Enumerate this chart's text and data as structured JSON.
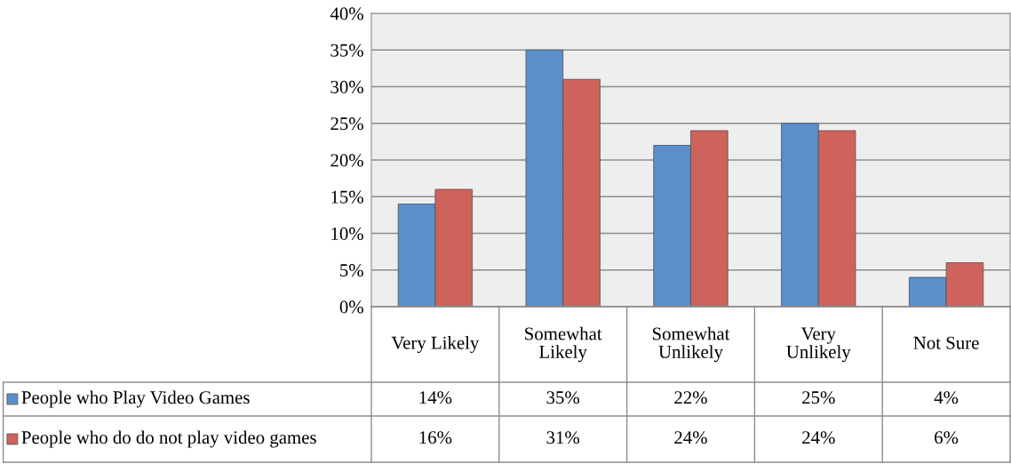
{
  "chart_data": {
    "type": "bar",
    "categories": [
      "Very Likely",
      "Somewhat Likely",
      "Somewhat Unlikely",
      "Very Unlikely",
      "Not Sure"
    ],
    "series": [
      {
        "name": "People who Play Video Games",
        "color": "#5b8fc9",
        "values": [
          14,
          35,
          22,
          25,
          4
        ],
        "value_labels": [
          "14%",
          "35%",
          "22%",
          "25%",
          "4%"
        ]
      },
      {
        "name": "People who do do not play video games",
        "color": "#cd635b",
        "values": [
          16,
          31,
          24,
          24,
          6
        ],
        "value_labels": [
          "16%",
          "31%",
          "24%",
          "24%",
          "6%"
        ]
      }
    ],
    "ylim": [
      0,
      40
    ],
    "yticks": [
      {
        "value": 0,
        "label": "0%"
      },
      {
        "value": 5,
        "label": "5%"
      },
      {
        "value": 10,
        "label": "10%"
      },
      {
        "value": 15,
        "label": "15%"
      },
      {
        "value": 20,
        "label": "20%"
      },
      {
        "value": 25,
        "label": "25%"
      },
      {
        "value": 30,
        "label": "30%"
      },
      {
        "value": 35,
        "label": "35%"
      },
      {
        "value": 40,
        "label": "40%"
      }
    ],
    "grid": "y",
    "legend": "bottom left"
  }
}
